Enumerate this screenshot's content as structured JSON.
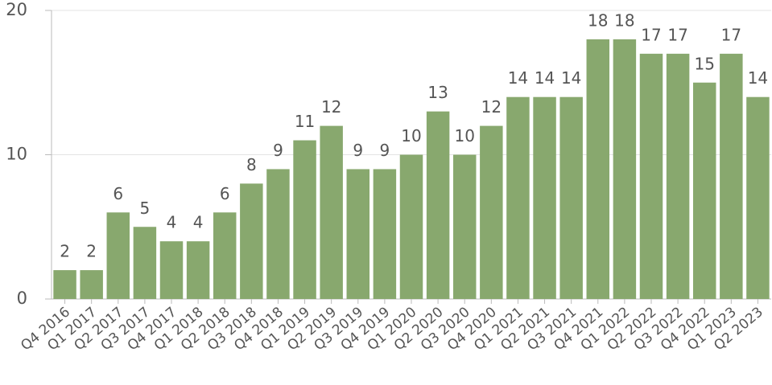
{
  "chart_data": {
    "type": "bar",
    "categories": [
      "Q4 2016",
      "Q1 2017",
      "Q2 2017",
      "Q3 2017",
      "Q4 2017",
      "Q1 2018",
      "Q2 2018",
      "Q3 2018",
      "Q4 2018",
      "Q1 2019",
      "Q2 2019",
      "Q3 2019",
      "Q4 2019",
      "Q1 2020",
      "Q2 2020",
      "Q3 2020",
      "Q4 2020",
      "Q1 2021",
      "Q2 2021",
      "Q3 2021",
      "Q4 2021",
      "Q1 2022",
      "Q2 2022",
      "Q3 2022",
      "Q4 2022",
      "Q1 2023",
      "Q2 2023"
    ],
    "values": [
      2,
      2,
      6,
      5,
      4,
      4,
      6,
      8,
      9,
      11,
      12,
      9,
      9,
      10,
      13,
      10,
      12,
      14,
      14,
      14,
      18,
      18,
      17,
      17,
      15,
      17,
      14
    ],
    "color": "#88a86e",
    "ylim": [
      0,
      20
    ],
    "yticks": [
      0,
      10,
      20
    ],
    "grid": true
  }
}
